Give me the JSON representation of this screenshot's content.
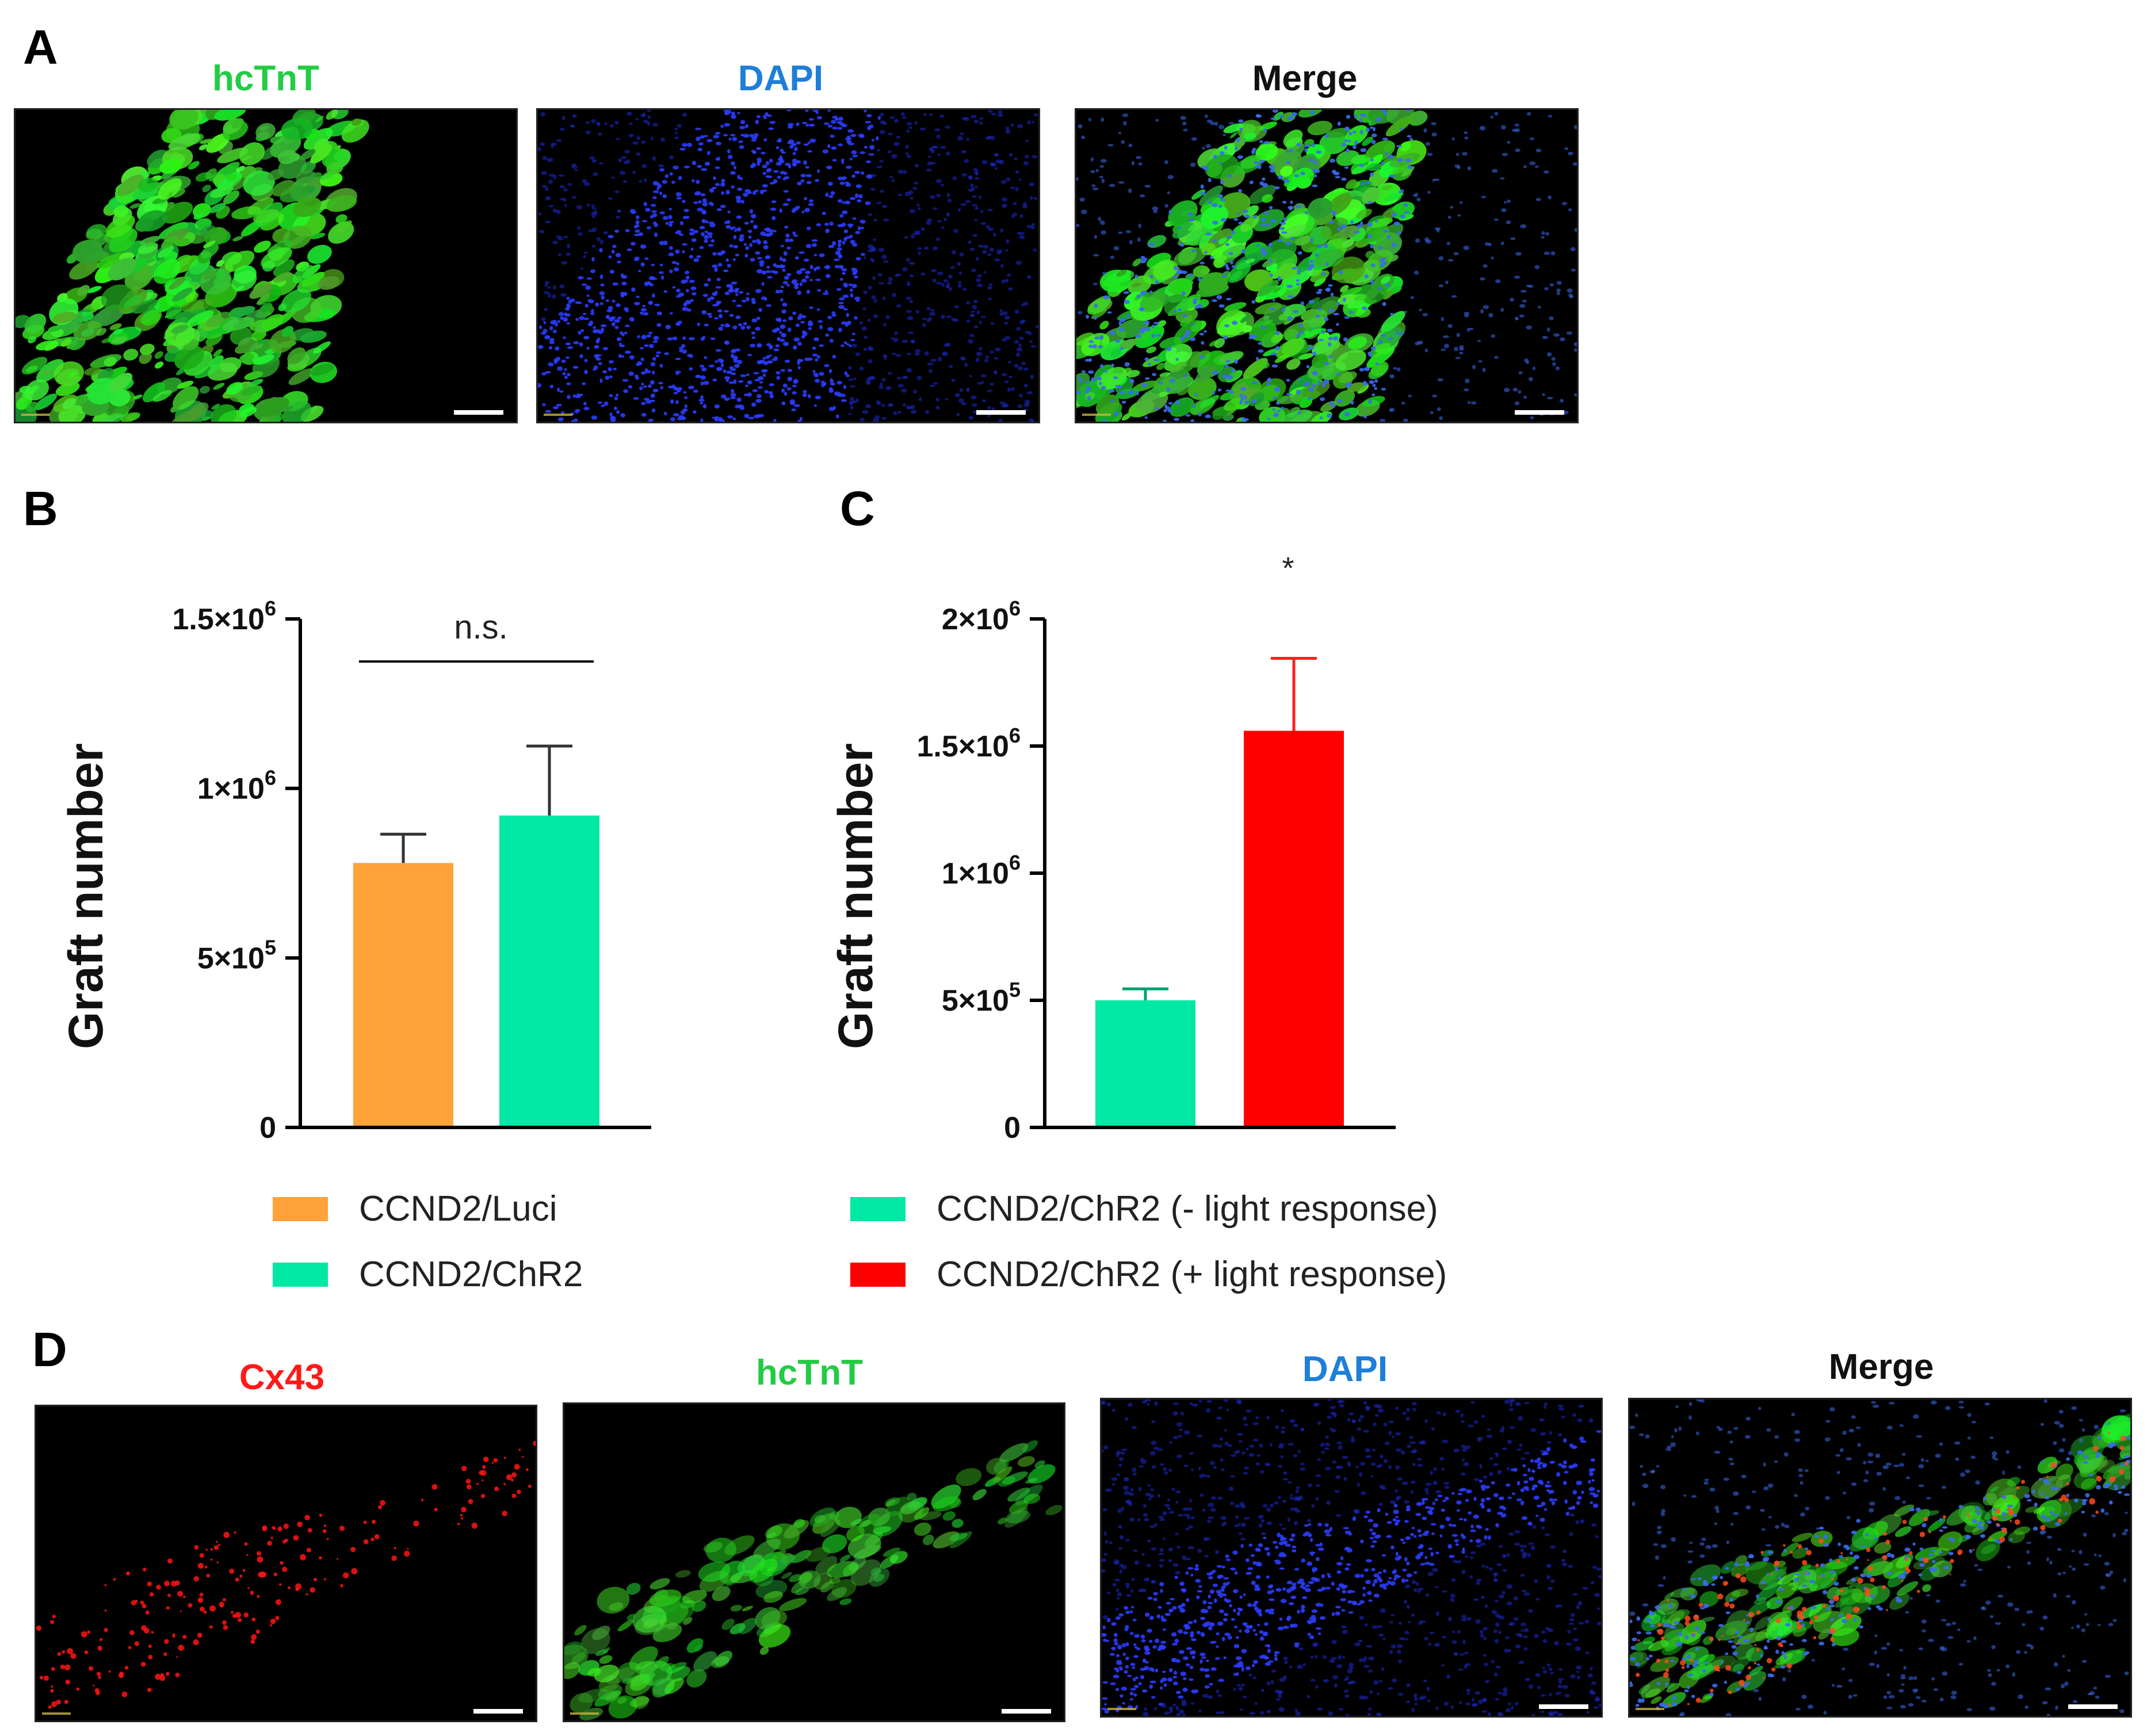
{
  "panel_a": {
    "letter": "A",
    "images": [
      {
        "title": "hcTnT",
        "title_color": "#22cc44",
        "stain": "hctnt"
      },
      {
        "title": "DAPI",
        "title_color": "#1e7fd8",
        "stain": "dapi"
      },
      {
        "title": "Merge",
        "title_color": "#111111",
        "stain": "merge"
      }
    ]
  },
  "panel_d": {
    "letter": "D",
    "images": [
      {
        "title": "Cx43",
        "title_color": "#ff1a1a",
        "stain": "cx43"
      },
      {
        "title": "hcTnT",
        "title_color": "#22cc44",
        "stain": "hctnt"
      },
      {
        "title": "DAPI",
        "title_color": "#1e7fd8",
        "stain": "dapi"
      },
      {
        "title": "Merge",
        "title_color": "#111111",
        "stain": "merge"
      }
    ]
  },
  "chart_data": [
    {
      "panel": "B",
      "type": "bar",
      "ylabel": "Graft number",
      "ylim": [
        0,
        1500000
      ],
      "yticks": [
        0,
        500000,
        1000000,
        1500000
      ],
      "ytick_labels": [
        {
          "base": "0",
          "exp": ""
        },
        {
          "base": "5×10",
          "exp": "5"
        },
        {
          "base": "1×10",
          "exp": "6"
        },
        {
          "base": "1.5×10",
          "exp": "6"
        }
      ],
      "categories": [
        "CCND2/Luci",
        "CCND2/ChR2"
      ],
      "values": [
        780000,
        920000
      ],
      "errors": [
        85000,
        205000
      ],
      "colors": [
        "#ffa23a",
        "#00e8a4"
      ],
      "annotation": {
        "text": "n.s.",
        "between": [
          0,
          1
        ]
      },
      "legend": [
        {
          "label": "CCND2/Luci",
          "color": "#ffa23a"
        },
        {
          "label": "CCND2/ChR2",
          "color": "#00e8a4"
        }
      ]
    },
    {
      "panel": "C",
      "type": "bar",
      "ylabel": "Graft number",
      "ylim": [
        0,
        2000000
      ],
      "yticks": [
        0,
        500000,
        1000000,
        1500000,
        2000000
      ],
      "ytick_labels": [
        {
          "base": "0",
          "exp": ""
        },
        {
          "base": "5×10",
          "exp": "5"
        },
        {
          "base": "1×10",
          "exp": "6"
        },
        {
          "base": "1.5×10",
          "exp": "6"
        },
        {
          "base": "2×10",
          "exp": "6"
        }
      ],
      "categories": [
        "CCND2/ChR2 (- light response)",
        "CCND2/ChR2 (+ light response)"
      ],
      "values": [
        500000,
        1560000
      ],
      "errors": [
        45000,
        285000
      ],
      "colors": [
        "#00e8a4",
        "#ff0000"
      ],
      "error_colors": [
        "#00a070",
        "#ff2020"
      ],
      "annotation": {
        "text": "*",
        "over": 1
      },
      "legend": [
        {
          "label": "CCND2/ChR2 (- light response)",
          "color": "#00e8a4"
        },
        {
          "label": "CCND2/ChR2 (+ light response)",
          "color": "#ff0000"
        }
      ]
    }
  ]
}
